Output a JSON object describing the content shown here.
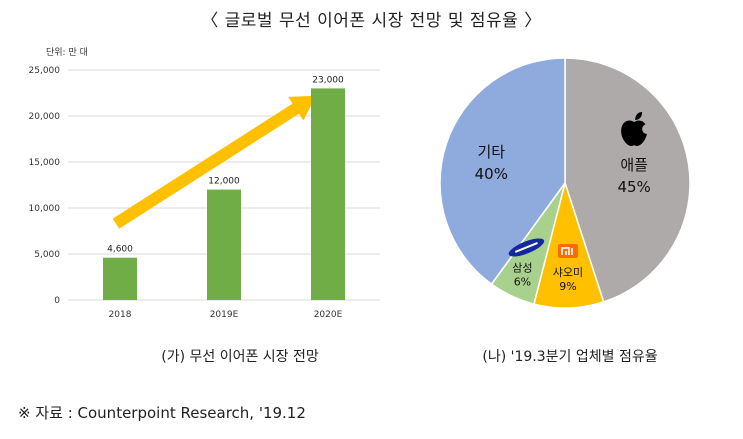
{
  "title": "〈 글로벌 무선 이어폰 시장 전망 및 점유율 〉",
  "caption_a": "(가) 무선 이어폰 시장 전망",
  "caption_b": "(나) '19.3분기 업체별 점유율",
  "source": "※ 자료 : Counterpoint Research, '19.12",
  "chart_data": [
    {
      "type": "bar",
      "unit_label": "단위: 만 대",
      "categories": [
        "2018",
        "2019E",
        "2020E"
      ],
      "values": [
        4600,
        12000,
        23000
      ],
      "value_labels": [
        "4,600",
        "12,000",
        "23,000"
      ],
      "yticks": [
        0,
        5000,
        10000,
        15000,
        20000,
        25000
      ],
      "ytick_labels": [
        "0",
        "5,000",
        "10,000",
        "15,000",
        "20,000",
        "25,000"
      ],
      "ylim": [
        0,
        25000
      ],
      "bar_color": "#70ad47",
      "arrow_color": "#ffc000",
      "grid": true
    },
    {
      "type": "pie",
      "slices": [
        {
          "label": "애플",
          "value": 45,
          "value_label": "45%",
          "color": "#aeaaaa",
          "icon": "apple-logo"
        },
        {
          "label": "샤오미",
          "value": 9,
          "value_label": "9%",
          "color": "#ffc000",
          "icon": "xiaomi-logo"
        },
        {
          "label": "삼성",
          "value": 6,
          "value_label": "6%",
          "color": "#a9d18e",
          "icon": "samsung-logo"
        },
        {
          "label": "기타",
          "value": 40,
          "value_label": "40%",
          "color": "#8faadc"
        }
      ]
    }
  ]
}
